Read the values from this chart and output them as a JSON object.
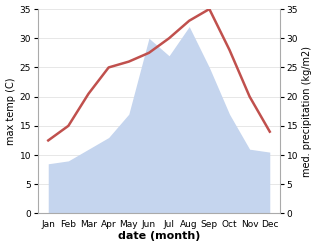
{
  "months": [
    "Jan",
    "Feb",
    "Mar",
    "Apr",
    "May",
    "Jun",
    "Jul",
    "Aug",
    "Sep",
    "Oct",
    "Nov",
    "Dec"
  ],
  "temp": [
    12.5,
    15.0,
    20.5,
    25.0,
    26.0,
    27.5,
    30.0,
    33.0,
    35.0,
    28.0,
    20.0,
    14.0
  ],
  "precip": [
    8.5,
    9.0,
    11.0,
    13.0,
    17.0,
    30.0,
    27.0,
    32.0,
    25.0,
    17.0,
    11.0,
    10.5
  ],
  "temp_color": "#c0504d",
  "precip_color": "#c5d5ee",
  "background_color": "#ffffff",
  "ylim": [
    0,
    35
  ],
  "yticks": [
    0,
    5,
    10,
    15,
    20,
    25,
    30,
    35
  ],
  "xlabel": "date (month)",
  "ylabel_left": "max temp (C)",
  "ylabel_right": "med. precipitation (kg/m2)",
  "temp_linewidth": 1.8,
  "spine_color": "#aaaaaa",
  "label_fontsize": 7,
  "tick_fontsize": 6.5,
  "xlabel_fontsize": 8
}
